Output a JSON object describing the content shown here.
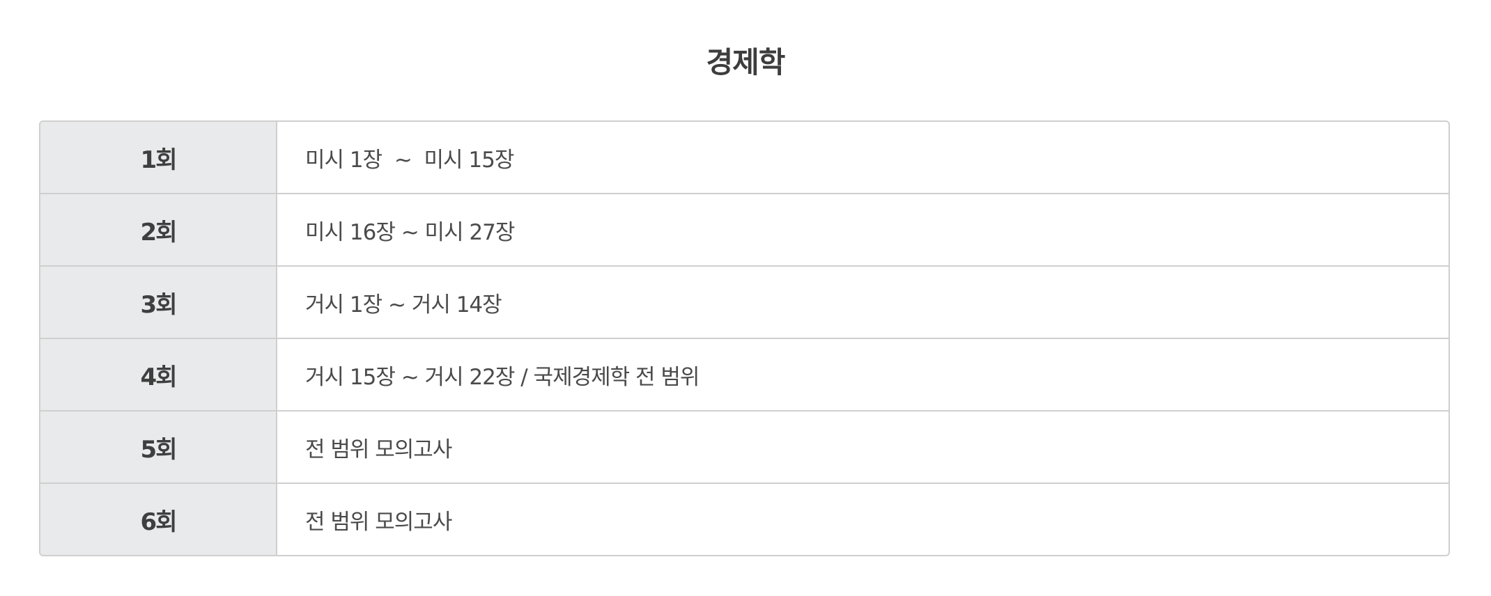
{
  "title": "경제학",
  "rows": [
    {
      "session": "1회",
      "range": "미시 1장  ~  미시 15장"
    },
    {
      "session": "2회",
      "range": "미시 16장 ~ 미시 27장"
    },
    {
      "session": "3회",
      "range": "거시 1장 ~ 거시 14장"
    },
    {
      "session": "4회",
      "range": "거시 15장 ~ 거시 22장 / 국제경제학 전 범위"
    },
    {
      "session": "5회",
      "range": "전 범위 모의고사"
    },
    {
      "session": "6회",
      "range": "전 범위 모의고사"
    }
  ]
}
